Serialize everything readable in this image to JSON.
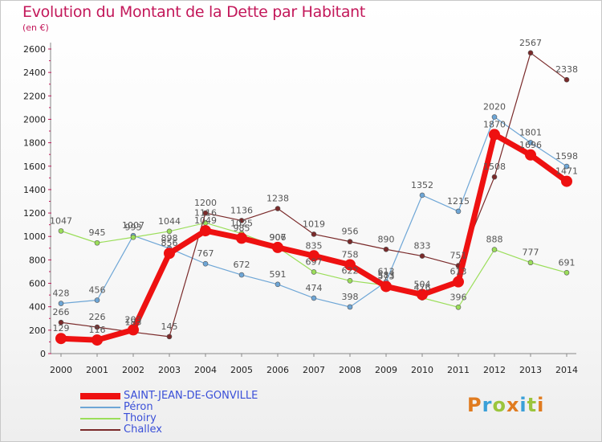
{
  "title": "Evolution du Montant de la Dette par Habitant",
  "subtitle": "(en €)",
  "logo": {
    "text": "Proxiti",
    "colors": [
      "#e07b1f",
      "#3aa0d8",
      "#9bc53d",
      "#e07b1f",
      "#3aa0d8",
      "#9bc53d",
      "#e07b1f"
    ]
  },
  "chart_data": {
    "type": "line",
    "x": [
      "2000",
      "2001",
      "2002",
      "2003",
      "2004",
      "2005",
      "2006",
      "2007",
      "2008",
      "2009",
      "2010",
      "2011",
      "2012",
      "2013",
      "2014"
    ],
    "ylim": [
      0,
      2600
    ],
    "yticks": [
      0,
      200,
      400,
      600,
      800,
      1000,
      1200,
      1400,
      1600,
      1800,
      2000,
      2200,
      2400,
      2600
    ],
    "grid": false,
    "legend_position": "bottom-left",
    "series": [
      {
        "name": "Péron",
        "color": "#6ea6d6",
        "values": [
          428,
          456,
          1007,
          898,
          767,
          672,
          591,
          474,
          398,
          613,
          1352,
          1215,
          2020,
          1801,
          1598
        ]
      },
      {
        "name": "Thoiry",
        "color": "#9bde5a",
        "values": [
          1047,
          945,
          993,
          1044,
          1116,
          1025,
          907,
          697,
          622,
          583,
          476,
          396,
          888,
          777,
          691
        ]
      },
      {
        "name": "Challex",
        "color": "#7a2a2a",
        "values": [
          266,
          226,
          183,
          145,
          1200,
          1136,
          1238,
          1019,
          956,
          890,
          833,
          751,
          1508,
          2567,
          2338
        ]
      },
      {
        "name": "SAINT-JEAN-DE-GONVILLE",
        "color": "#ee1111",
        "values": [
          129,
          116,
          203,
          856,
          1049,
          985,
          906,
          835,
          758,
          573,
          504,
          613,
          1870,
          1696,
          1471
        ]
      }
    ]
  }
}
